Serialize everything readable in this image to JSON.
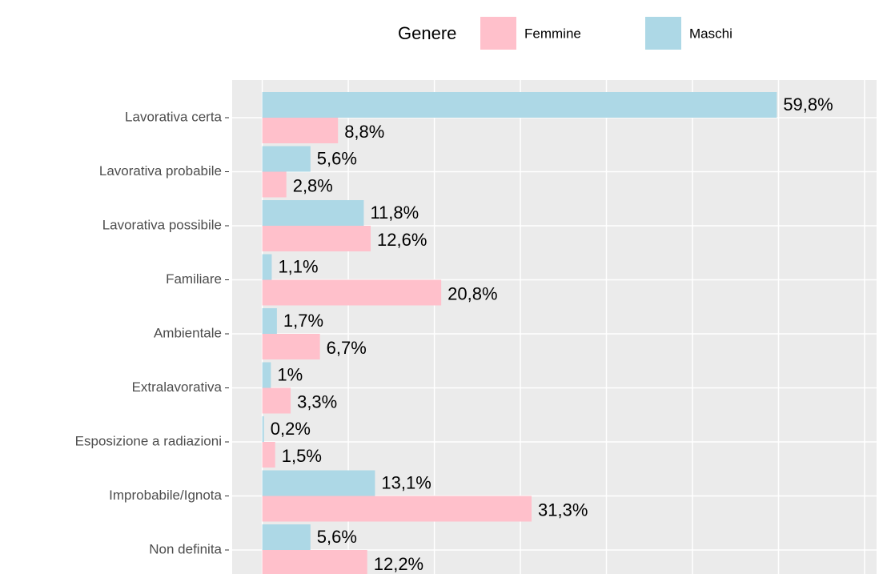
{
  "chart_data": {
    "type": "hbar",
    "legend_title": "Genere",
    "categories": [
      "Lavorativa certa",
      "Lavorativa probabile",
      "Lavorativa possibile",
      "Familiare",
      "Ambientale",
      "Extralavorativa",
      "Esposizione a radiazioni",
      "Improbabile/Ignota",
      "Non definita"
    ],
    "series": [
      {
        "name": "Femmine",
        "color": "#ffc0cb",
        "values": [
          8.8,
          2.8,
          12.6,
          20.8,
          6.7,
          3.3,
          1.5,
          31.3,
          12.2
        ],
        "value_labels": [
          "8,8%",
          "2,8%",
          "12,6%",
          "20,8%",
          "6,7%",
          "3,3%",
          "1,5%",
          "31,3%",
          "12,2%"
        ]
      },
      {
        "name": "Maschi",
        "color": "#add8e6",
        "values": [
          59.8,
          5.6,
          11.8,
          1.1,
          1.7,
          1,
          0.2,
          13.1,
          5.6
        ],
        "value_labels": [
          "59,8%",
          "5,6%",
          "11,8%",
          "1,1%",
          "1,7%",
          "1%",
          "0,2%",
          "13,1%",
          "5,6%"
        ]
      }
    ],
    "xlim": [
      -3.5,
      71.4
    ],
    "xticks": [
      0,
      10,
      20,
      30,
      40,
      50,
      60,
      70
    ],
    "grid": true
  }
}
